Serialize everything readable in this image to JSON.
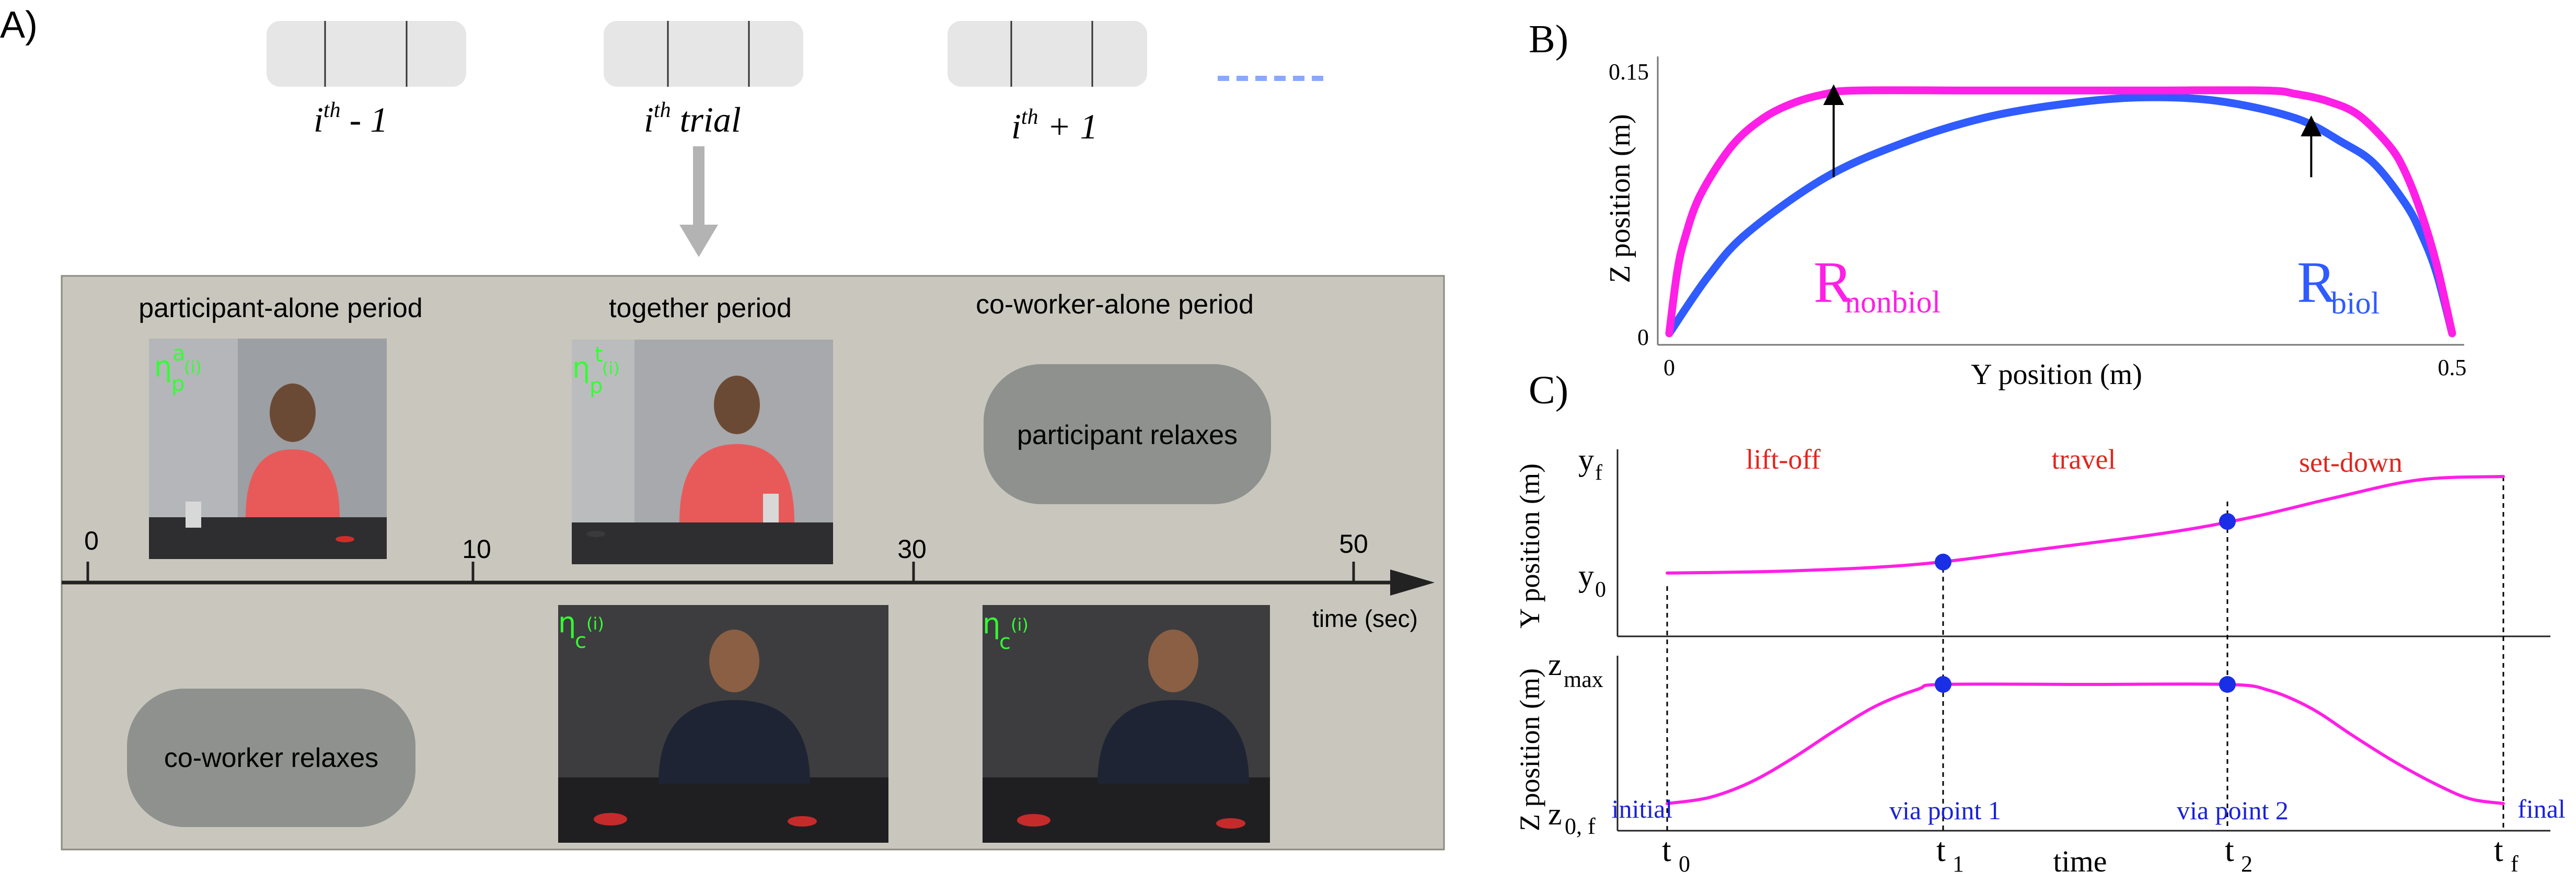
{
  "colors": {
    "magenta": "#ff1fe6",
    "blue": "#2f5bff",
    "panel_bg": "#c9c7bd",
    "bubble": "#8e918d",
    "label_green": "#33ff33",
    "label_red": "#e0261f",
    "label_blue": "#1a22d6",
    "trial_box": "#e6e6e6",
    "dots": "#8aa8ff"
  },
  "panel_a": {
    "label": "A)",
    "trials": [
      {
        "main": "i",
        "sup": "th",
        "rest": " - 1"
      },
      {
        "main": "i",
        "sup": "th",
        "rest": " trial"
      },
      {
        "main": "i",
        "sup": "th",
        "rest": " + 1"
      }
    ],
    "periods": [
      "participant-alone period",
      "together period",
      "co-worker-alone period"
    ],
    "participant_relaxes": "participant relaxes",
    "coworker_relaxes": "co-worker relaxes",
    "time_ticks": [
      "0",
      "10",
      "30",
      "50"
    ],
    "time_label": "time (sec)",
    "photo_labels": [
      {
        "sym": "η",
        "sub": "p",
        "sup": "a",
        "idx": "(i)"
      },
      {
        "sym": "η",
        "sub": "p",
        "sup": "t",
        "idx": "(i)"
      },
      {
        "sym": "η",
        "sub": "c",
        "sup": "",
        "idx": "(i)"
      },
      {
        "sym": "η",
        "sub": "c",
        "sup": "",
        "idx": "(i)"
      }
    ]
  },
  "chart_data": [
    {
      "panel": "B)",
      "type": "line",
      "xlabel": "Y position (m)",
      "ylabel": "Z position (m)",
      "xlim": [
        0,
        0.5
      ],
      "ylim": [
        0,
        0.15
      ],
      "xticks": [
        "0",
        "0.5"
      ],
      "yticks": [
        "0",
        "0.15"
      ],
      "series": [
        {
          "name": "R_nonbiol",
          "label_main": "R",
          "label_sub": "nonbiol",
          "color": "#ff1fe6",
          "x": [
            0,
            0.005,
            0.01,
            0.02,
            0.04,
            0.06,
            0.08,
            0.1,
            0.12,
            0.2,
            0.3,
            0.38,
            0.4,
            0.42,
            0.44,
            0.46,
            0.47,
            0.48,
            0.49,
            0.5
          ],
          "y": [
            0,
            0.035,
            0.055,
            0.08,
            0.108,
            0.124,
            0.133,
            0.138,
            0.14,
            0.14,
            0.14,
            0.14,
            0.138,
            0.134,
            0.126,
            0.108,
            0.093,
            0.07,
            0.04,
            0
          ]
        },
        {
          "name": "R_biol",
          "label_main": "R",
          "label_sub": "biol",
          "color": "#2f5bff",
          "x": [
            0,
            0.025,
            0.05,
            0.1,
            0.15,
            0.2,
            0.25,
            0.3,
            0.35,
            0.4,
            0.43,
            0.45,
            0.47,
            0.48,
            0.49,
            0.5
          ],
          "y": [
            0,
            0.033,
            0.058,
            0.09,
            0.11,
            0.124,
            0.132,
            0.136,
            0.134,
            0.124,
            0.11,
            0.098,
            0.075,
            0.058,
            0.035,
            0
          ]
        }
      ],
      "arrows": [
        {
          "series": "R_nonbiol",
          "x_from": 0.105,
          "y_from": 0.09,
          "x_to": 0.105,
          "y_to": 0.14
        },
        {
          "series": "R_biol",
          "x_from": 0.41,
          "y_from": 0.09,
          "x_to": 0.41,
          "y_to": 0.122
        }
      ]
    },
    {
      "panel": "C)",
      "type": "line",
      "xlabel": "time",
      "xticks": [
        {
          "main": "t",
          "sub": "0"
        },
        {
          "main": "t",
          "sub": "1"
        },
        {
          "main": "t",
          "sub": "2"
        },
        {
          "main": "t",
          "sub": "f"
        }
      ],
      "phases": [
        "lift-off",
        "travel",
        "set-down"
      ],
      "subplots": [
        {
          "ylabel": "Y position (m)",
          "yticks": [
            {
              "main": "y",
              "sub": "f"
            },
            {
              "main": "y",
              "sub": "0"
            }
          ],
          "x": [
            0,
            0.15,
            0.3,
            0.45,
            0.6,
            0.7,
            0.8,
            0.9,
            1.0
          ],
          "y": [
            0.12,
            0.14,
            0.2,
            0.34,
            0.49,
            0.63,
            0.81,
            0.97,
            1.0
          ],
          "via_points": [
            {
              "x": 0.33,
              "y": 0.22
            },
            {
              "x": 0.67,
              "y": 0.59
            }
          ]
        },
        {
          "ylabel": "Z position (m)",
          "yticks": [
            {
              "main": "z",
              "sub": "max"
            },
            {
              "main": "z",
              "sub": "0, f"
            }
          ],
          "x": [
            0,
            0.05,
            0.1,
            0.15,
            0.2,
            0.25,
            0.3,
            0.33,
            0.5,
            0.67,
            0.72,
            0.77,
            0.82,
            0.87,
            0.92,
            0.96,
            1.0
          ],
          "y": [
            0,
            0.05,
            0.18,
            0.38,
            0.61,
            0.82,
            0.96,
            1.0,
            1.0,
            1.0,
            0.95,
            0.8,
            0.57,
            0.35,
            0.16,
            0.04,
            0
          ],
          "via_points": [
            {
              "x": 0.33,
              "y": 1.0
            },
            {
              "x": 0.67,
              "y": 1.0
            }
          ]
        }
      ],
      "point_labels": [
        "initial",
        "via point 1",
        "via point 2",
        "final"
      ]
    }
  ]
}
